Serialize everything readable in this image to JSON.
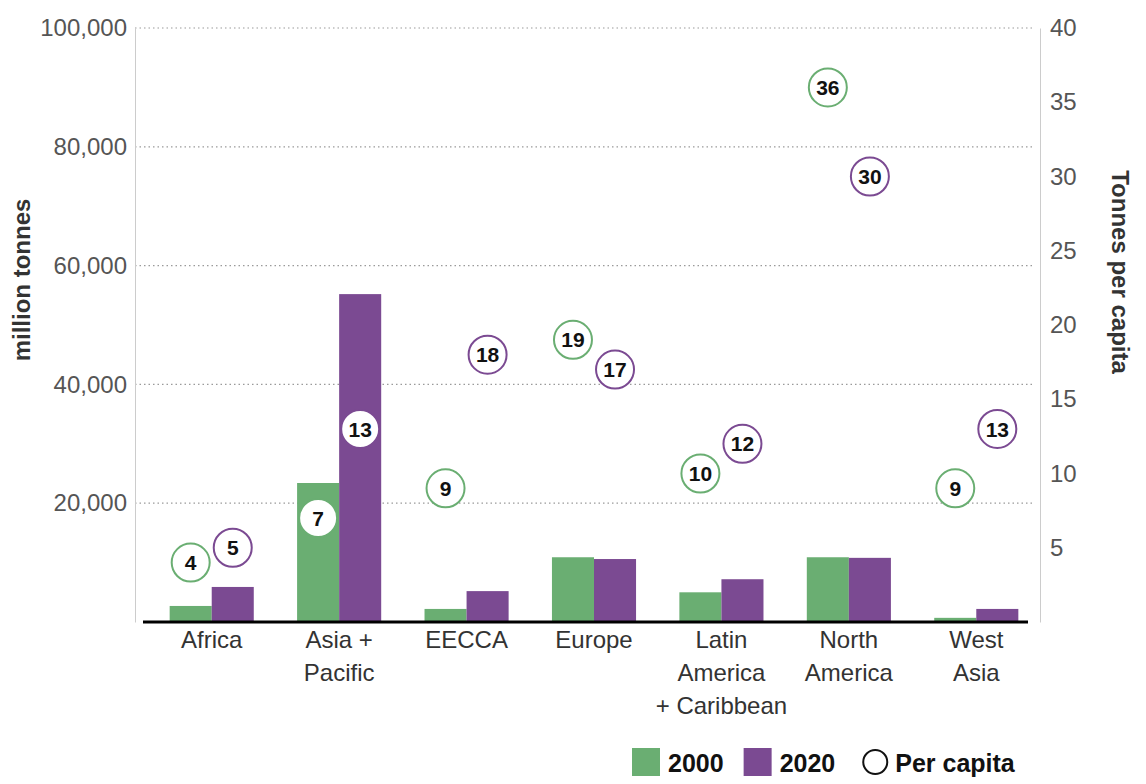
{
  "chart_data": {
    "type": "bar",
    "y_label": "million tonnes",
    "y2_label": "Tonnes per capita",
    "categories": [
      "Africa",
      "Asia +\nPacific",
      "EECCA",
      "Europe",
      "Latin\nAmerica\n+ Caribbean",
      "North\nAmerica",
      "West\nAsia"
    ],
    "series": [
      {
        "name": "2000",
        "color": "#6aae72",
        "values": [
          2700,
          23400,
          2200,
          10900,
          5000,
          10900,
          700
        ],
        "per_capita": [
          4,
          7,
          9,
          19,
          10,
          36,
          9
        ]
      },
      {
        "name": "2020",
        "color": "#7b4a92",
        "values": [
          5900,
          55200,
          5200,
          10600,
          7200,
          10800,
          2200
        ],
        "per_capita": [
          5,
          13,
          18,
          17,
          12,
          30,
          13
        ]
      }
    ],
    "per_capita_legend": "Per capita",
    "ylim": [
      0,
      100000
    ],
    "yticks": [
      {
        "value": 20000,
        "label": "20,000"
      },
      {
        "value": 40000,
        "label": "40,000"
      },
      {
        "value": 60000,
        "label": "60,000"
      },
      {
        "value": 80000,
        "label": "80,000"
      },
      {
        "value": 100000,
        "label": "100,000"
      }
    ],
    "y2lim": [
      0,
      40
    ],
    "y2ticks": [
      5,
      10,
      15,
      20,
      25,
      30,
      35,
      40
    ],
    "grid": true,
    "data_labels": true,
    "marker": "circle"
  }
}
